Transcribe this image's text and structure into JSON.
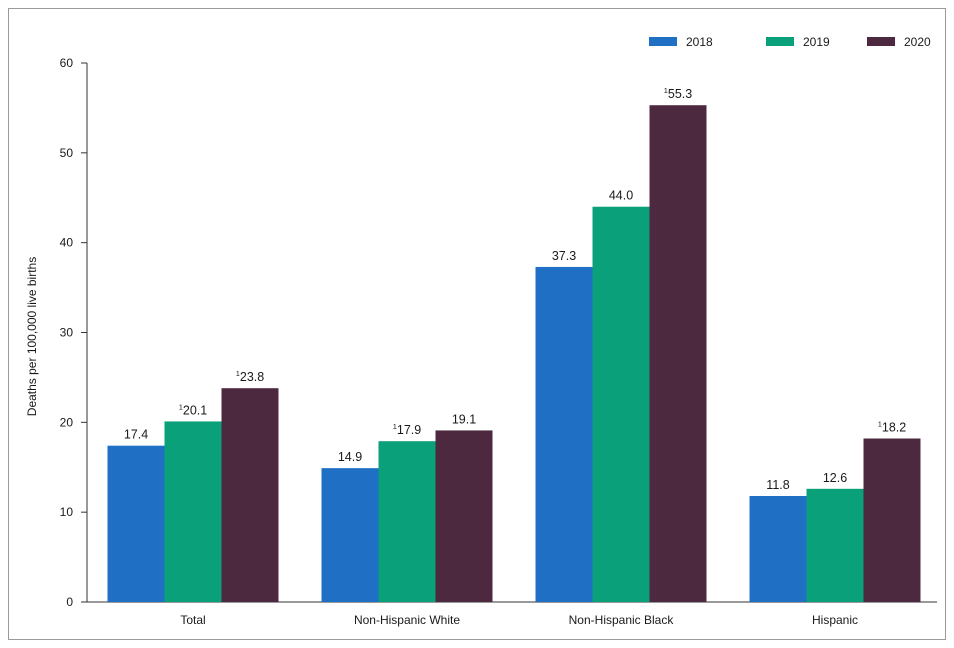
{
  "chart_data": {
    "type": "bar",
    "title": "",
    "xlabel": "",
    "ylabel": "Deaths per 100,000 live births",
    "ylim": [
      0,
      60
    ],
    "yticks": [
      0,
      10,
      20,
      30,
      40,
      50,
      60
    ],
    "categories": [
      "Total",
      "Non-Hispanic White",
      "Non-Hispanic Black",
      "Hispanic"
    ],
    "series": [
      {
        "name": "2018",
        "color": "#1f6fc5",
        "values": [
          17.4,
          14.9,
          37.3,
          11.8
        ],
        "labels": [
          "17.4",
          "14.9",
          "37.3",
          "11.8"
        ],
        "footnotes": [
          "",
          "",
          "",
          ""
        ]
      },
      {
        "name": "2019",
        "color": "#0aa07a",
        "values": [
          20.1,
          17.9,
          44.0,
          12.6
        ],
        "labels": [
          "20.1",
          "17.9",
          "44.0",
          "12.6"
        ],
        "footnotes": [
          "1",
          "1",
          "",
          ""
        ]
      },
      {
        "name": "2020",
        "color": "#4d2940",
        "values": [
          23.8,
          19.1,
          55.3,
          18.2
        ],
        "labels": [
          "23.8",
          "19.1",
          "55.3",
          "18.2"
        ],
        "footnotes": [
          "1",
          "",
          "1",
          "1"
        ]
      }
    ],
    "legend_position": "top-right",
    "grid": false
  }
}
